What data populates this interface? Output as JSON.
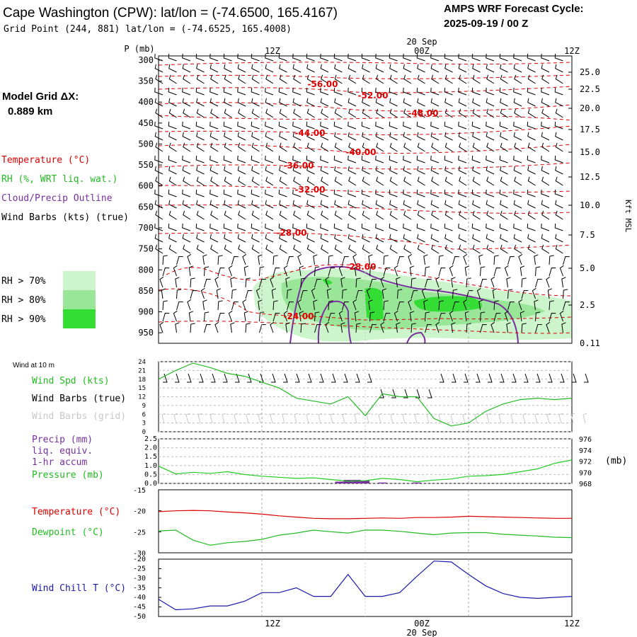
{
  "header": {
    "title": "Cape Washington (CPW):  lat/lon = (-74.6500, 165.4167)",
    "subtitle": "Grid Point (244, 881) lat/lon = (-74.6525, 165.4008)",
    "cycle_line1": "AMPS WRF Forecast Cycle:",
    "cycle_line2": "2025-09-19 / 00  Z",
    "model_grid_label": "Model Grid ΔX:",
    "model_grid_value": "0.889 km"
  },
  "time_axis": {
    "ticks": [
      "12Z",
      "00Z",
      "12Z"
    ],
    "date_label": "20 Sep"
  },
  "colors": {
    "temperature": "#dd0000",
    "rh": "#22bb22",
    "cloud": "#7a2fa0",
    "pressure": "#22cc22",
    "windchill": "#1a1aaa",
    "barb_grid": "#c8c8c8",
    "rh70": "#ccf5cc",
    "rh80": "#99e699",
    "rh90": "#33dd33"
  },
  "legend_upper": {
    "temperature": "Temperature (°C)",
    "rh": "RH (%, WRT liq. wat.)",
    "cloud": "Cloud/Precip Outline",
    "barbs": "Wind Barbs (kts) (true)",
    "rh70": "RH > 70%",
    "rh80": "RH > 80%",
    "rh90": "RH > 90%"
  },
  "legend_wind": {
    "header": "Wind at 10 m",
    "spd": "Wind Spd (kts)",
    "barbs_true": "Wind Barbs (true)",
    "barbs_grid": "Wind Barbs (grid)"
  },
  "legend_precip": {
    "line1": "Precip (mm)",
    "line2": "liq. equiv.",
    "line3": "1-hr accum",
    "pressure": "Pressure (mb)",
    "pressure_units": "(mb)"
  },
  "legend_temp": {
    "temperature": "Temperature (°C)",
    "dewpoint": "Dewpoint (°C)"
  },
  "legend_chill": {
    "label": "Wind Chill T (°C)"
  },
  "chart_data": [
    {
      "type": "heatmap",
      "name": "cross-section",
      "y_axis_label": "P (mb)",
      "pressure_ticks": [
        300,
        350,
        400,
        450,
        500,
        550,
        600,
        650,
        700,
        750,
        800,
        850,
        900,
        950
      ],
      "right_axis_label": "Kft MSL",
      "height_ticks": [
        "25.0",
        "22.5",
        "20.0",
        "17.5",
        "15.0",
        "12.5",
        "10.0",
        "7.5",
        "5.0",
        "2.5",
        "0.11"
      ],
      "isotherm_labels": [
        "-56.00",
        "-52.00",
        "-48.00",
        "-44.00",
        "-40.00",
        "-36.00",
        "-32.00",
        "-28.00",
        "-28.00",
        "-24.00"
      ]
    },
    {
      "type": "line",
      "name": "wind-speed",
      "y_ticks": [
        "24",
        "21",
        "18",
        "15",
        "12",
        "9",
        "6",
        "3",
        "0"
      ],
      "ylim": [
        0,
        24
      ],
      "x_hours": [
        0,
        2,
        4,
        6,
        8,
        10,
        12,
        14,
        16,
        18,
        20,
        22,
        24,
        26,
        28,
        30,
        32,
        34,
        36,
        38,
        40,
        42,
        44,
        46,
        48
      ],
      "values": [
        18,
        21,
        23.5,
        22,
        20,
        19,
        17,
        15,
        11.5,
        10.5,
        9.5,
        12,
        5.5,
        13,
        12,
        12,
        4.5,
        2,
        3,
        7,
        9.5,
        11,
        11.5,
        11,
        11.5
      ]
    },
    {
      "type": "line",
      "name": "precip-pressure",
      "precip_ticks": [
        "2.5",
        "2.0",
        "1.5",
        "1.0",
        "0.5",
        "0.0"
      ],
      "pressure_ticks": [
        "976",
        "974",
        "972",
        "970",
        "968"
      ],
      "precip_lim": [
        0,
        2.5
      ],
      "pressure_lim": [
        968,
        976
      ],
      "x_hours": [
        0,
        2,
        4,
        6,
        8,
        10,
        12,
        14,
        16,
        18,
        20,
        22,
        24,
        26,
        28,
        30,
        32,
        34,
        36,
        38,
        40,
        42,
        44,
        46,
        48
      ],
      "pressure": [
        971.1,
        969.7,
        970.0,
        969.8,
        970.1,
        969.6,
        969.3,
        969.1,
        968.9,
        969.0,
        968.7,
        968.4,
        968.5,
        968.9,
        968.7,
        968.3,
        968.6,
        968.8,
        969.3,
        969.4,
        969.6,
        970.1,
        970.6,
        971.6,
        972.2
      ],
      "precip": [
        {
          "hour": 21,
          "value": 0.1
        },
        {
          "hour": 22,
          "value": 0.2
        },
        {
          "hour": 23,
          "value": 0.2
        },
        {
          "hour": 24,
          "value": 0.15
        },
        {
          "hour": 26,
          "value": 0.05
        },
        {
          "hour": 30,
          "value": 0.05
        }
      ]
    },
    {
      "type": "line",
      "name": "temperature-dewpoint",
      "y_ticks": [
        "-15",
        "-20",
        "-25",
        "-30"
      ],
      "ylim": [
        -30,
        -15
      ],
      "x_hours": [
        0,
        2,
        4,
        6,
        8,
        10,
        12,
        14,
        16,
        18,
        20,
        22,
        24,
        26,
        28,
        30,
        32,
        34,
        36,
        38,
        40,
        42,
        44,
        46,
        48
      ],
      "temperature": [
        -20.2,
        -20.0,
        -19.9,
        -20.0,
        -20.3,
        -20.5,
        -20.8,
        -21.2,
        -21.5,
        -21.8,
        -21.9,
        -21.9,
        -21.8,
        -21.7,
        -21.8,
        -21.6,
        -21.6,
        -21.5,
        -21.3,
        -21.4,
        -21.5,
        -21.6,
        -21.7,
        -21.8,
        -21.8
      ],
      "dewpoint": [
        -24.8,
        -24.6,
        -27.0,
        -28.2,
        -27.6,
        -27.3,
        -26.8,
        -25.8,
        -25.3,
        -24.6,
        -25.0,
        -25.3,
        -24.6,
        -24.6,
        -24.9,
        -25.3,
        -25.7,
        -25.3,
        -25.2,
        -25.2,
        -25.6,
        -25.8,
        -26.0,
        -26.3,
        -26.4
      ]
    },
    {
      "type": "line",
      "name": "wind-chill",
      "y_ticks": [
        "-20",
        "-25",
        "-30",
        "-35",
        "-40",
        "-45",
        "-50"
      ],
      "ylim": [
        -50,
        -20
      ],
      "x_hours": [
        0,
        2,
        4,
        6,
        8,
        10,
        12,
        14,
        16,
        18,
        20,
        22,
        24,
        26,
        28,
        30,
        32,
        34,
        36,
        38,
        40,
        42,
        44,
        46,
        48
      ],
      "values": [
        -41,
        -46.5,
        -46,
        -44.5,
        -44.5,
        -42,
        -37.5,
        -37.5,
        -35,
        -39.5,
        -39.5,
        -28,
        -39.5,
        -39.5,
        -37.5,
        -29,
        -21,
        -21.5,
        -28,
        -34,
        -38,
        -40,
        -40.5,
        -40,
        -39.5
      ]
    }
  ]
}
